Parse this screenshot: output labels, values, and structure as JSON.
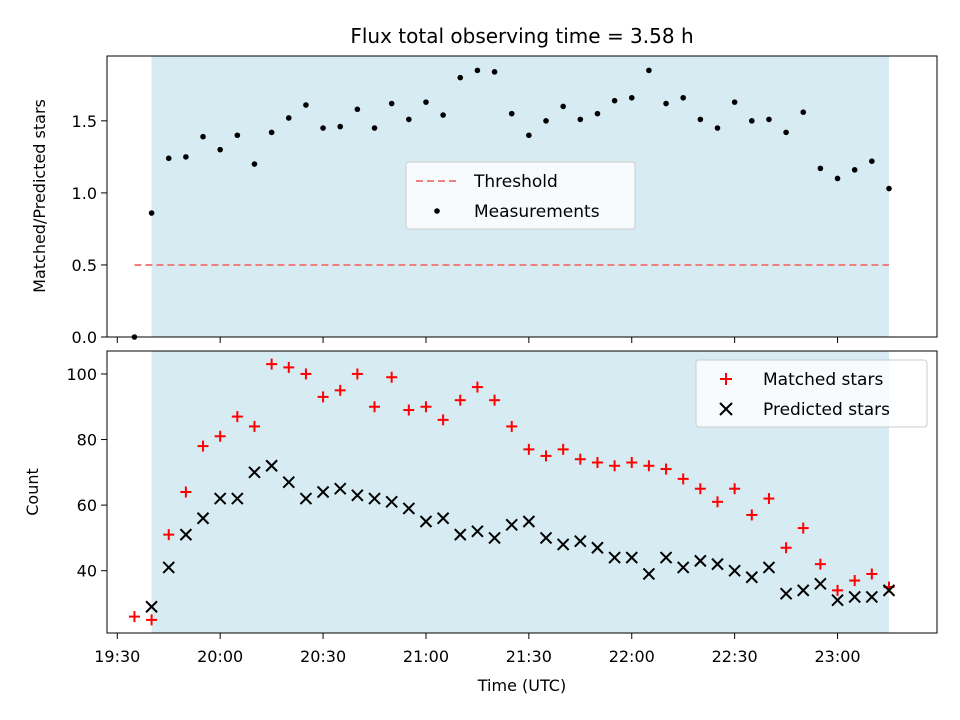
{
  "chart_data": [
    {
      "type": "scatter",
      "title": "Flux total observing time = 3.58 h",
      "xlabel": "",
      "ylabel": "Matched/Predicted stars",
      "xlim": [
        "19:27",
        "23:29"
      ],
      "ylim": [
        0.0,
        1.95
      ],
      "yticks": [
        0.0,
        0.5,
        1.0,
        1.5
      ],
      "ytick_labels": [
        "0.0",
        "0.5",
        "1.0",
        "1.5"
      ],
      "shaded_span": [
        "19:40",
        "23:15"
      ],
      "colors": {
        "shade": "#add8e6",
        "threshold": "#f08080",
        "points": "#000000"
      },
      "legend": {
        "position": "center",
        "entries": [
          "Threshold",
          "Measurements"
        ]
      },
      "threshold": {
        "name": "Threshold",
        "y": 0.5,
        "x_range": [
          "19:35",
          "23:15"
        ]
      },
      "series": [
        {
          "name": "Measurements",
          "x": [
            "19:35",
            "19:40",
            "19:45",
            "19:50",
            "19:55",
            "20:00",
            "20:05",
            "20:10",
            "20:15",
            "20:20",
            "20:25",
            "20:30",
            "20:35",
            "20:40",
            "20:45",
            "20:50",
            "20:55",
            "21:00",
            "21:05",
            "21:10",
            "21:15",
            "21:20",
            "21:25",
            "21:30",
            "21:35",
            "21:40",
            "21:45",
            "21:50",
            "21:55",
            "22:00",
            "22:05",
            "22:10",
            "22:15",
            "22:20",
            "22:25",
            "22:30",
            "22:35",
            "22:40",
            "22:45",
            "22:50",
            "22:55",
            "23:00",
            "23:05",
            "23:10",
            "23:15"
          ],
          "y": [
            0.0,
            0.86,
            1.24,
            1.25,
            1.39,
            1.3,
            1.4,
            1.2,
            1.42,
            1.52,
            1.61,
            1.45,
            1.46,
            1.58,
            1.45,
            1.62,
            1.51,
            1.63,
            1.54,
            1.8,
            1.85,
            1.84,
            1.55,
            1.4,
            1.5,
            1.6,
            1.51,
            1.55,
            1.64,
            1.66,
            1.85,
            1.62,
            1.66,
            1.51,
            1.45,
            1.63,
            1.5,
            1.51,
            1.42,
            1.56,
            1.17,
            1.1,
            1.16,
            1.22,
            1.03
          ]
        }
      ]
    },
    {
      "type": "scatter",
      "title": "",
      "xlabel": "Time (UTC)",
      "ylabel": "Count",
      "xlim": [
        "19:27",
        "23:29"
      ],
      "ylim": [
        21,
        107
      ],
      "yticks": [
        40,
        60,
        80,
        100
      ],
      "ytick_labels": [
        "40",
        "60",
        "80",
        "100"
      ],
      "xticks": [
        "19:30",
        "20:00",
        "20:30",
        "21:00",
        "21:30",
        "22:00",
        "22:30",
        "23:00"
      ],
      "shaded_span": [
        "19:40",
        "23:15"
      ],
      "colors": {
        "shade": "#add8e6",
        "matched": "#ff0000",
        "predicted": "#000000"
      },
      "legend": {
        "position": "top-right",
        "entries": [
          "Matched stars",
          "Predicted stars"
        ]
      },
      "series": [
        {
          "name": "Matched stars",
          "x": [
            "19:35",
            "19:40",
            "19:45",
            "19:50",
            "19:55",
            "20:00",
            "20:05",
            "20:10",
            "20:15",
            "20:20",
            "20:25",
            "20:30",
            "20:35",
            "20:40",
            "20:45",
            "20:50",
            "20:55",
            "21:00",
            "21:05",
            "21:10",
            "21:15",
            "21:20",
            "21:25",
            "21:30",
            "21:35",
            "21:40",
            "21:45",
            "21:50",
            "21:55",
            "22:00",
            "22:05",
            "22:10",
            "22:15",
            "22:20",
            "22:25",
            "22:30",
            "22:35",
            "22:40",
            "22:45",
            "22:50",
            "22:55",
            "23:00",
            "23:05",
            "23:10",
            "23:15"
          ],
          "y": [
            26,
            25,
            51,
            64,
            78,
            81,
            87,
            84,
            103,
            102,
            100,
            93,
            95,
            100,
            90,
            99,
            89,
            90,
            86,
            92,
            96,
            92,
            84,
            77,
            75,
            77,
            74,
            73,
            72,
            73,
            72,
            71,
            68,
            65,
            61,
            65,
            57,
            62,
            47,
            53,
            42,
            34,
            37,
            39,
            35
          ]
        },
        {
          "name": "Predicted stars",
          "x": [
            "19:40",
            "19:45",
            "19:50",
            "19:55",
            "20:00",
            "20:05",
            "20:10",
            "20:15",
            "20:20",
            "20:25",
            "20:30",
            "20:35",
            "20:40",
            "20:45",
            "20:50",
            "20:55",
            "21:00",
            "21:05",
            "21:10",
            "21:15",
            "21:20",
            "21:25",
            "21:30",
            "21:35",
            "21:40",
            "21:45",
            "21:50",
            "21:55",
            "22:00",
            "22:05",
            "22:10",
            "22:15",
            "22:20",
            "22:25",
            "22:30",
            "22:35",
            "22:40",
            "22:45",
            "22:50",
            "22:55",
            "23:00",
            "23:05",
            "23:10",
            "23:15"
          ],
          "y": [
            29,
            41,
            51,
            56,
            62,
            62,
            70,
            72,
            67,
            62,
            64,
            65,
            63,
            62,
            61,
            59,
            55,
            56,
            51,
            52,
            50,
            54,
            55,
            50,
            48,
            49,
            47,
            44,
            44,
            39,
            44,
            41,
            43,
            42,
            40,
            38,
            41,
            33,
            34,
            36,
            31,
            32,
            32,
            34
          ]
        }
      ]
    }
  ]
}
